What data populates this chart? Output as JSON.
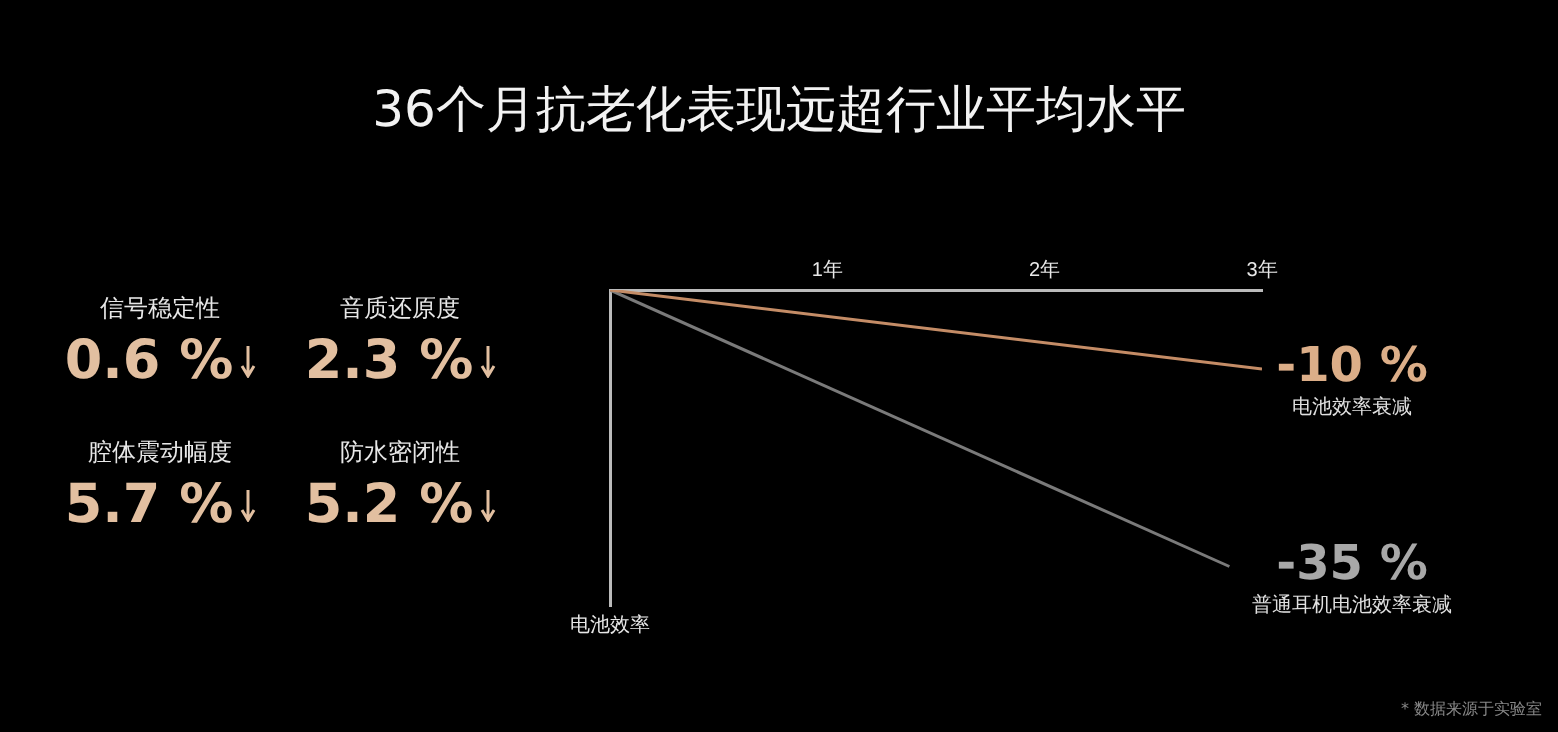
{
  "chart_data": [
    {
      "type": "other",
      "title": "36个月抗老化表现远超行业平均水平",
      "categories": [
        "信号稳定性",
        "音质还原度",
        "腔体震动幅度",
        "防水密闭性"
      ],
      "values": [
        0.6,
        2.3,
        5.7,
        5.2
      ],
      "value_labels": [
        "0.6 %",
        "2.3 %",
        "5.7 %",
        "5.2 %"
      ],
      "color": "#e2bfa0"
    },
    {
      "type": "line",
      "ylabel": "电池效率",
      "xlim": [
        0,
        3
      ],
      "xticks": [
        {
          "value": 1,
          "label": "1年"
        },
        {
          "value": 2,
          "label": "2年"
        },
        {
          "value": 3,
          "label": "3年"
        }
      ],
      "ylim": [
        -40,
        0
      ],
      "tick_labels": "x",
      "grid": false,
      "legend": false,
      "marker": "none",
      "line_style": "solid",
      "series": [
        {
          "name": "电池效率衰减",
          "color": "#c48c66",
          "x": [
            0,
            3
          ],
          "values": [
            0,
            -10
          ],
          "value_labels": [
            null,
            "-10 %"
          ]
        },
        {
          "name": "普通耳机电池效率衰减",
          "color": "#7a7a7a",
          "x": [
            0,
            2.85
          ],
          "values": [
            0,
            -35
          ],
          "value_labels": [
            null,
            "-35 %"
          ]
        }
      ],
      "annotations": [
        "* 数据来源于实验室"
      ]
    }
  ]
}
